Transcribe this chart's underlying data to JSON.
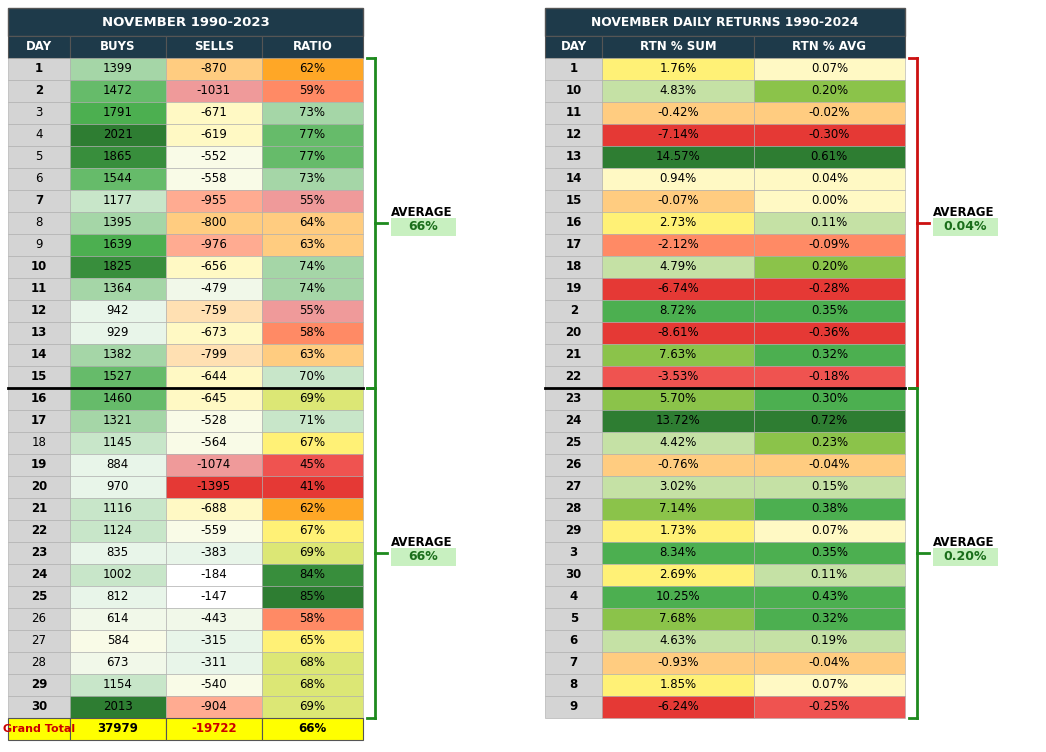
{
  "table1_title": "NOVEMBER 1990-2023",
  "table1_headers": [
    "DAY",
    "BUYS",
    "SELLS",
    "RATIO"
  ],
  "table1_rows": [
    [
      "1",
      "1399",
      "-870",
      "62%"
    ],
    [
      "2",
      "1472",
      "-1031",
      "59%"
    ],
    [
      "3",
      "1791",
      "-671",
      "73%"
    ],
    [
      "4",
      "2021",
      "-619",
      "77%"
    ],
    [
      "5",
      "1865",
      "-552",
      "77%"
    ],
    [
      "6",
      "1544",
      "-558",
      "73%"
    ],
    [
      "7",
      "1177",
      "-955",
      "55%"
    ],
    [
      "8",
      "1395",
      "-800",
      "64%"
    ],
    [
      "9",
      "1639",
      "-976",
      "63%"
    ],
    [
      "10",
      "1825",
      "-656",
      "74%"
    ],
    [
      "11",
      "1364",
      "-479",
      "74%"
    ],
    [
      "12",
      "942",
      "-759",
      "55%"
    ],
    [
      "13",
      "929",
      "-673",
      "58%"
    ],
    [
      "14",
      "1382",
      "-799",
      "63%"
    ],
    [
      "15",
      "1527",
      "-644",
      "70%"
    ],
    [
      "16",
      "1460",
      "-645",
      "69%"
    ],
    [
      "17",
      "1321",
      "-528",
      "71%"
    ],
    [
      "18",
      "1145",
      "-564",
      "67%"
    ],
    [
      "19",
      "884",
      "-1074",
      "45%"
    ],
    [
      "20",
      "970",
      "-1395",
      "41%"
    ],
    [
      "21",
      "1116",
      "-688",
      "62%"
    ],
    [
      "22",
      "1124",
      "-559",
      "67%"
    ],
    [
      "23",
      "835",
      "-383",
      "69%"
    ],
    [
      "24",
      "1002",
      "-184",
      "84%"
    ],
    [
      "25",
      "812",
      "-147",
      "85%"
    ],
    [
      "26",
      "614",
      "-443",
      "58%"
    ],
    [
      "27",
      "584",
      "-315",
      "65%"
    ],
    [
      "28",
      "673",
      "-311",
      "68%"
    ],
    [
      "29",
      "1154",
      "-540",
      "68%"
    ],
    [
      "30",
      "2013",
      "-904",
      "69%"
    ]
  ],
  "table1_footer": [
    "Grand Total",
    "37979",
    "-19722",
    "66%"
  ],
  "table2_title": "NOVEMBER DAILY RETURNS 1990-2024",
  "table2_headers": [
    "DAY",
    "RTN % SUM",
    "RTN % AVG"
  ],
  "table2_rows": [
    [
      "1",
      "1.76%",
      "0.07%"
    ],
    [
      "10",
      "4.83%",
      "0.20%"
    ],
    [
      "11",
      "-0.42%",
      "-0.02%"
    ],
    [
      "12",
      "-7.14%",
      "-0.30%"
    ],
    [
      "13",
      "14.57%",
      "0.61%"
    ],
    [
      "14",
      "0.94%",
      "0.04%"
    ],
    [
      "15",
      "-0.07%",
      "0.00%"
    ],
    [
      "16",
      "2.73%",
      "0.11%"
    ],
    [
      "17",
      "-2.12%",
      "-0.09%"
    ],
    [
      "18",
      "4.79%",
      "0.20%"
    ],
    [
      "19",
      "-6.74%",
      "-0.28%"
    ],
    [
      "2",
      "8.72%",
      "0.35%"
    ],
    [
      "20",
      "-8.61%",
      "-0.36%"
    ],
    [
      "21",
      "7.63%",
      "0.32%"
    ],
    [
      "22",
      "-3.53%",
      "-0.18%"
    ],
    [
      "23",
      "5.70%",
      "0.30%"
    ],
    [
      "24",
      "13.72%",
      "0.72%"
    ],
    [
      "25",
      "4.42%",
      "0.23%"
    ],
    [
      "26",
      "-0.76%",
      "-0.04%"
    ],
    [
      "27",
      "3.02%",
      "0.15%"
    ],
    [
      "28",
      "7.14%",
      "0.38%"
    ],
    [
      "29",
      "1.73%",
      "0.07%"
    ],
    [
      "3",
      "8.34%",
      "0.35%"
    ],
    [
      "30",
      "2.69%",
      "0.11%"
    ],
    [
      "4",
      "10.25%",
      "0.43%"
    ],
    [
      "5",
      "7.68%",
      "0.32%"
    ],
    [
      "6",
      "4.63%",
      "0.19%"
    ],
    [
      "7",
      "-0.93%",
      "-0.04%"
    ],
    [
      "8",
      "1.85%",
      "0.07%"
    ],
    [
      "9",
      "-6.24%",
      "-0.25%"
    ]
  ],
  "header_bg": "#1e3a4a",
  "header_text": "#ffffff",
  "avg_box_bg": "#c8f0c0",
  "avg_box_text": "#1a6e1a",
  "green_bracket_color": "#1e8a1e",
  "red_bracket_color": "#cc1111",
  "t1_avg1_value": "66%",
  "t1_avg2_value": "66%",
  "t2_avg1_value": "0.04%",
  "t2_avg2_value": "0.20%"
}
